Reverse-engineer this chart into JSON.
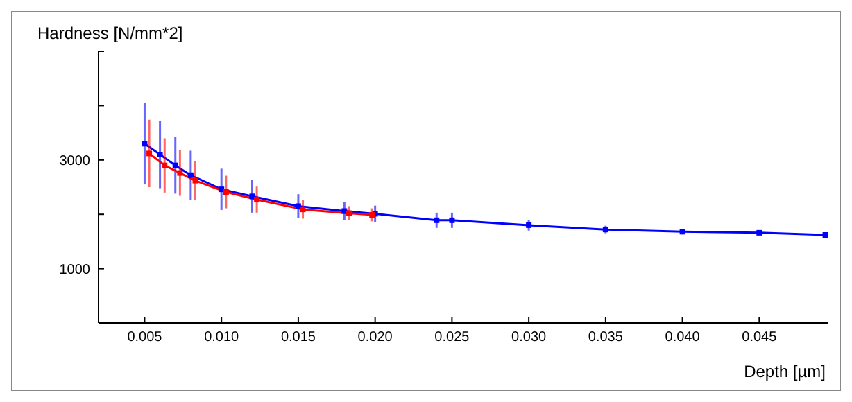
{
  "chart_data": {
    "type": "line",
    "xlabel": "Depth [µm]",
    "ylabel": "Hardness [N/mm*2]",
    "xlim": [
      0.002,
      0.0495
    ],
    "ylim": [
      0,
      5000
    ],
    "xticks": [
      {
        "value": 0.005,
        "label": "0.005"
      },
      {
        "value": 0.01,
        "label": "0.010"
      },
      {
        "value": 0.015,
        "label": "0.015"
      },
      {
        "value": 0.02,
        "label": "0.020"
      },
      {
        "value": 0.025,
        "label": "0.025"
      },
      {
        "value": 0.03,
        "label": "0.030"
      },
      {
        "value": 0.035,
        "label": "0.035"
      },
      {
        "value": 0.04,
        "label": "0.040"
      },
      {
        "value": 0.045,
        "label": "0.045"
      }
    ],
    "yticks": [
      {
        "value": 0,
        "label": null
      },
      1000,
      {
        "value": 2000,
        "label": null
      },
      3000,
      {
        "value": 4000,
        "label": null
      },
      {
        "value": 5000,
        "label": null
      }
    ],
    "marker": "square",
    "grid": false,
    "legend": false,
    "series": [
      {
        "color": "#0000ff",
        "x": [
          0.005,
          0.006,
          0.007,
          0.008,
          0.01,
          0.012,
          0.015,
          0.018,
          0.02,
          0.024,
          0.025,
          0.03,
          0.035,
          0.04,
          0.045,
          0.0493
        ],
        "values": [
          3300,
          3100,
          2900,
          2720,
          2460,
          2330,
          2150,
          2060,
          2010,
          1890,
          1890,
          1800,
          1720,
          1680,
          1660,
          1620
        ],
        "errors": [
          750,
          620,
          520,
          450,
          380,
          300,
          220,
          170,
          150,
          140,
          140,
          100,
          70,
          50,
          40,
          40
        ]
      },
      {
        "color": "#ff0000",
        "x": [
          0.0053,
          0.0063,
          0.0073,
          0.0083,
          0.0103,
          0.0123,
          0.0153,
          0.0183,
          0.0198
        ],
        "values": [
          3120,
          2900,
          2760,
          2620,
          2410,
          2270,
          2090,
          2020,
          1990
        ],
        "errors": [
          620,
          500,
          420,
          360,
          300,
          240,
          170,
          130,
          120
        ]
      }
    ]
  }
}
